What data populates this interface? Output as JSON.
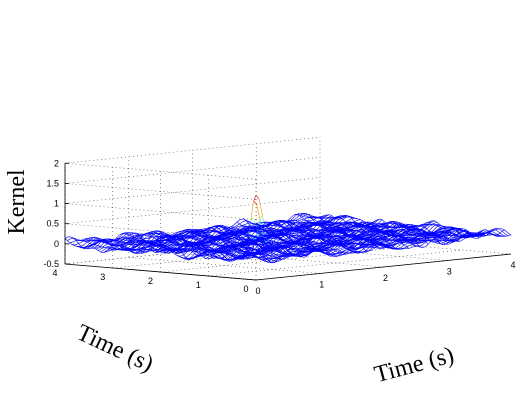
{
  "chart_data": {
    "type": "surface",
    "zlabel": "Kernel",
    "xlabel": "Time (s)",
    "ylabel": "Time (s)",
    "zlim": [
      -0.5,
      2
    ],
    "xlim": [
      0,
      4
    ],
    "ylim": [
      0,
      4
    ],
    "z_ticks": [
      "-0.5",
      "0",
      "0.5",
      "1",
      "1.5",
      "2"
    ],
    "x_ticks": [
      "0",
      "1",
      "2",
      "3",
      "4"
    ],
    "y_ticks": [
      "0",
      "1",
      "2",
      "3",
      "4"
    ],
    "grid": true,
    "colormap": [
      "#0000ff",
      "#00bfff",
      "#40e0d0",
      "#e5e500",
      "#ff8c00",
      "#d00000"
    ],
    "peak": {
      "x": 0,
      "y": 0,
      "z": 1.6
    },
    "background_level": 0,
    "background_amplitude": 0.25
  }
}
